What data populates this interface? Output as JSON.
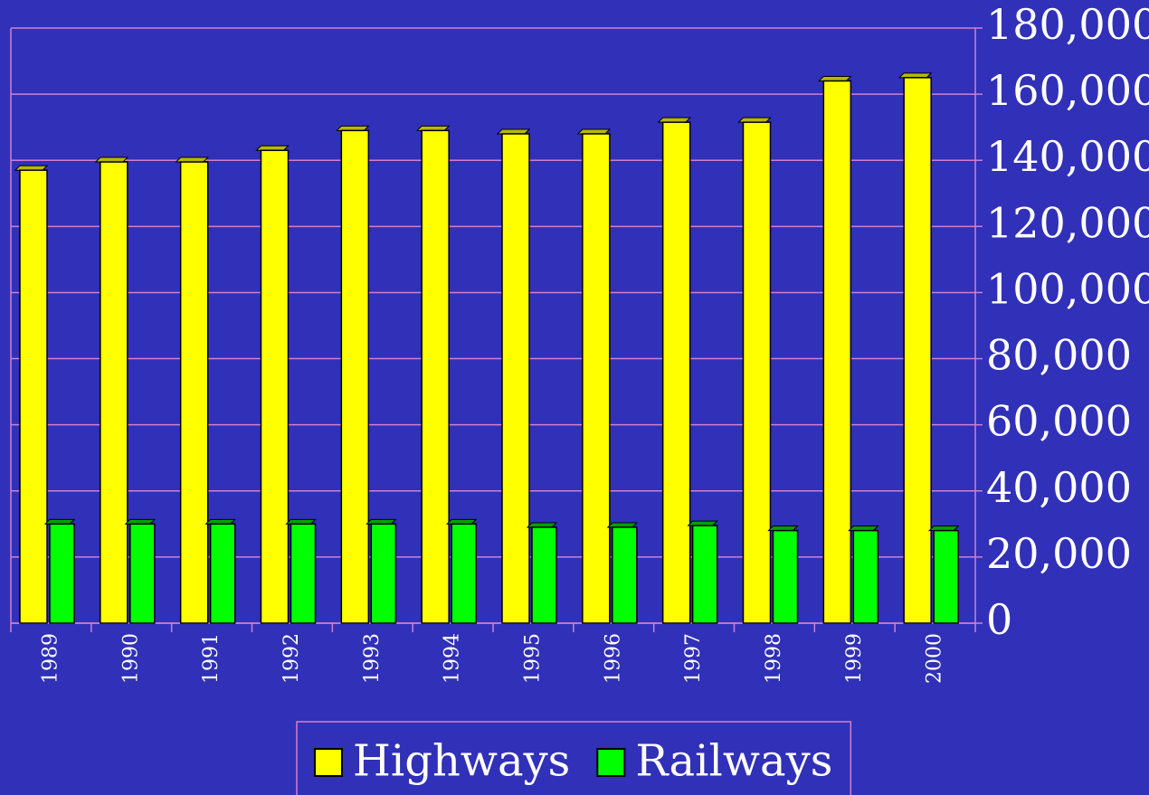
{
  "chart_data": {
    "type": "bar",
    "categories": [
      "1989",
      "1990",
      "1991",
      "1992",
      "1993",
      "1994",
      "1995",
      "1996",
      "1997",
      "1998",
      "1999",
      "2000"
    ],
    "series": [
      {
        "name": "Highways",
        "color": "#ffff00",
        "values": [
          137000,
          139500,
          139500,
          143000,
          149000,
          149000,
          148000,
          148000,
          151500,
          151500,
          164000,
          165000
        ]
      },
      {
        "name": "Railways",
        "color": "#00ff00",
        "values": [
          30000,
          30000,
          30000,
          30000,
          30000,
          30000,
          29000,
          29000,
          29500,
          28000,
          28000,
          28000
        ]
      }
    ],
    "ylim": [
      0,
      180000
    ],
    "yticks": [
      0,
      {
        "value": 20000,
        "label": "20,000"
      },
      {
        "value": 40000,
        "label": "40,000"
      },
      {
        "value": 60000,
        "label": "60,000"
      },
      {
        "value": 80000,
        "label": "80,000"
      },
      {
        "value": 100000,
        "label": "100,000"
      },
      {
        "value": 120000,
        "label": "120,000"
      },
      {
        "value": 140000,
        "label": "140,000"
      },
      {
        "value": 160000,
        "label": "160,000"
      },
      {
        "value": 180000,
        "label": "180,000"
      }
    ],
    "grid": true,
    "legend": "bottom"
  }
}
